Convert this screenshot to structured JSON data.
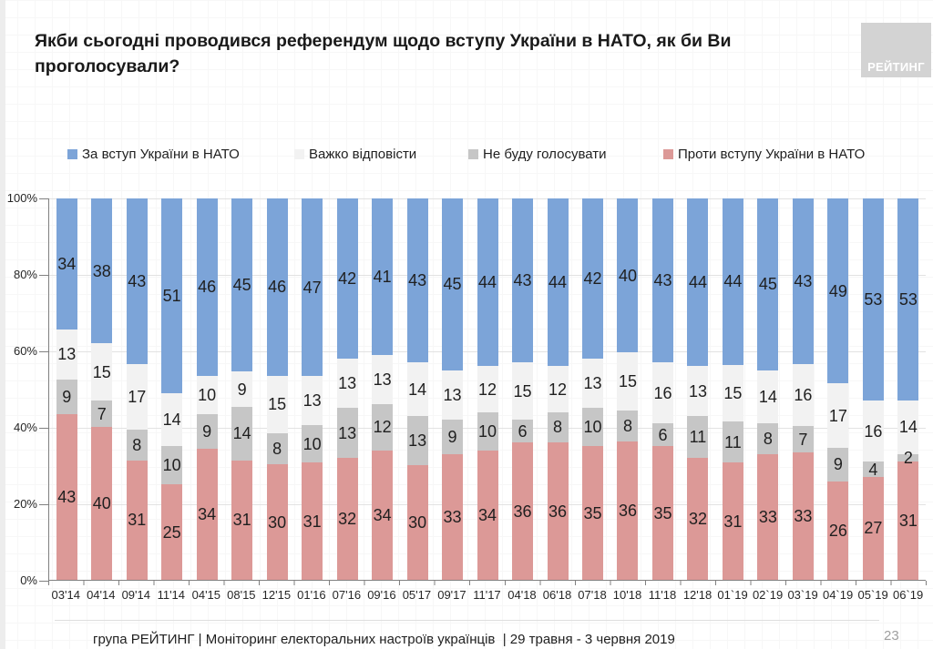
{
  "title": "Якби сьогодні проводився референдум щодо вступу України в НАТО, як би Ви проголосували?",
  "logo": "РЕЙТИНГ",
  "chart_data": {
    "type": "bar",
    "subtype": "stacked-100pct-column",
    "categories": [
      "03'14",
      "04'14",
      "09'14",
      "11'14",
      "04'15",
      "08'15",
      "12'15",
      "01'16",
      "07'16",
      "09'16",
      "05'17",
      "09'17",
      "11'17",
      "04'18",
      "06'18",
      "07'18",
      "10'18",
      "11'18",
      "12'18",
      "01`19",
      "02`19",
      "03`19",
      "04`19",
      "05`19",
      "06`19"
    ],
    "series": [
      {
        "key": "za-vstup",
        "name": "За вступ України в НАТО",
        "color": "#7CA4D8",
        "values": [
          34,
          38,
          43,
          51,
          46,
          45,
          46,
          47,
          42,
          41,
          43,
          45,
          44,
          43,
          44,
          42,
          40,
          43,
          44,
          44,
          45,
          43,
          49,
          53,
          53
        ]
      },
      {
        "key": "vazhko",
        "name": "Важко відповісти",
        "color": "#F2F2F2",
        "values": [
          13,
          15,
          17,
          14,
          10,
          9,
          15,
          13,
          13,
          13,
          14,
          13,
          12,
          15,
          12,
          13,
          15,
          16,
          13,
          15,
          14,
          16,
          17,
          16,
          14
        ]
      },
      {
        "key": "ne-budu",
        "name": "Не буду голосувати",
        "color": "#C6C6C6",
        "values": [
          9,
          7,
          8,
          10,
          9,
          14,
          8,
          10,
          13,
          12,
          13,
          9,
          10,
          6,
          8,
          10,
          8,
          6,
          11,
          11,
          8,
          7,
          9,
          4,
          2
        ]
      },
      {
        "key": "proty",
        "name": "Проти вступу України в НАТО",
        "color": "#DC9997",
        "values": [
          43,
          40,
          31,
          25,
          34,
          31,
          30,
          31,
          32,
          34,
          30,
          33,
          34,
          36,
          36,
          35,
          36,
          35,
          32,
          31,
          33,
          33,
          26,
          27,
          31
        ]
      }
    ],
    "stack_order_bottom_to_top": [
      3,
      2,
      1,
      0
    ],
    "yticks": [
      "100%",
      "80%",
      "60%",
      "40%",
      "20%",
      "0%"
    ],
    "ylim": [
      0,
      100
    ],
    "grid": "horizontal-every-20pct",
    "legend_position": "top"
  },
  "footer": {
    "text": "група РЕЙТИНГ | Моніторинг електоральних настроїв українців  | 29 травня - 3 червня 2019",
    "page_number": "23"
  }
}
